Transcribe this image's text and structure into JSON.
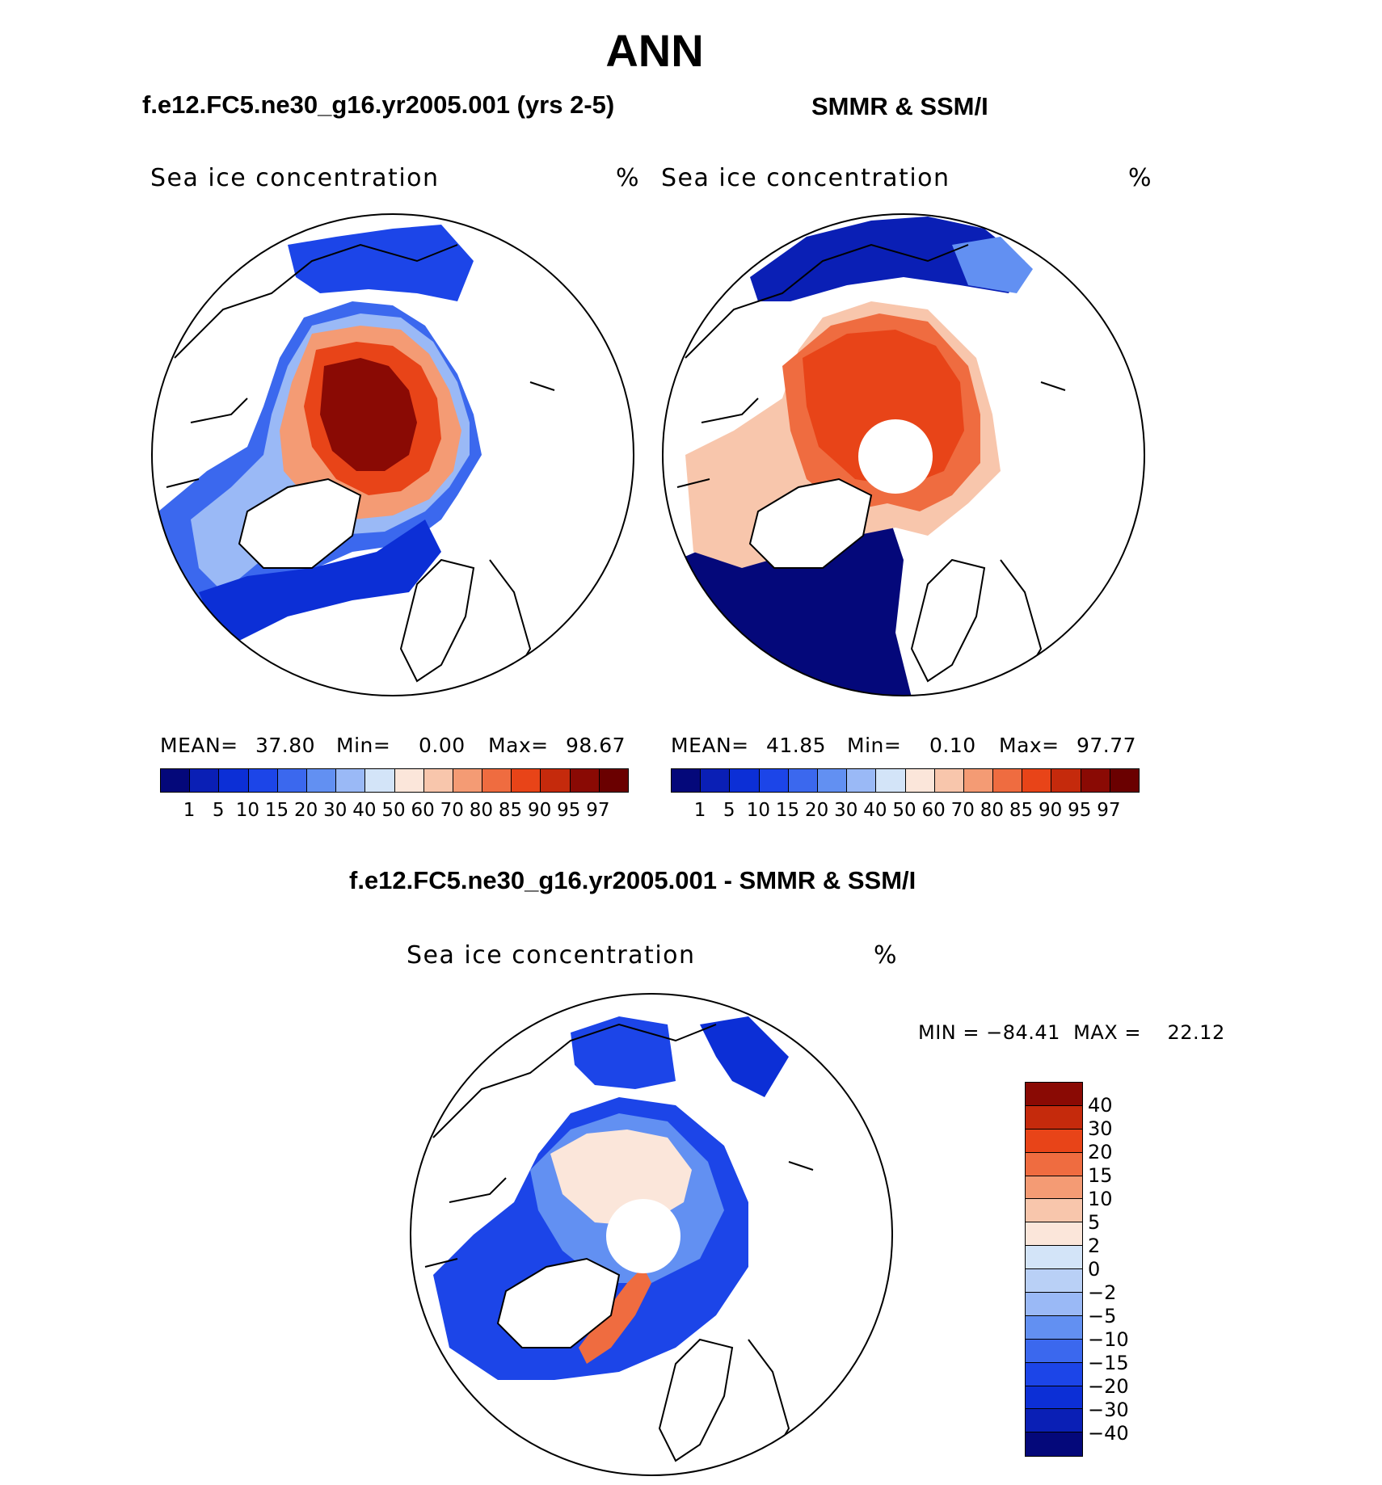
{
  "figure": {
    "season": "ANN"
  },
  "panels": {
    "model": {
      "title": "f.e12.FC5.ne30_g16.yr2005.001 (yrs 2-5)",
      "variable": "Sea ice concentration",
      "units": "%",
      "mean_label": "MEAN=",
      "mean": "37.80",
      "min_label": "Min=",
      "min": "0.00",
      "max_label": "Max=",
      "max": "98.67"
    },
    "obs": {
      "title": "SMMR & SSM/I",
      "variable": "Sea ice concentration",
      "units": "%",
      "mean_label": "MEAN=",
      "mean": "41.85",
      "min_label": "Min=",
      "min": "0.10",
      "max_label": "Max=",
      "max": "97.77"
    },
    "diff": {
      "title": "f.e12.FC5.ne30_g16.yr2005.001 - SMMR & SSM/I",
      "variable": "Sea ice concentration",
      "units": "%",
      "minmax_text": "MIN = −84.41  MAX =    22.12"
    }
  },
  "legends": {
    "concentration": {
      "levels": [
        "1",
        "5",
        "10",
        "15",
        "20",
        "30",
        "40",
        "50",
        "60",
        "70",
        "80",
        "85",
        "90",
        "95",
        "97"
      ],
      "colors": [
        "#04087a",
        "#0a1fb5",
        "#0c2fd6",
        "#1c45e8",
        "#3b68ee",
        "#6290f2",
        "#9ab9f6",
        "#d3e4f8",
        "#fbe6da",
        "#f8c6ac",
        "#f49b74",
        "#ef6c40",
        "#e84418",
        "#c52a0c",
        "#8a0a04",
        "#6a0000"
      ]
    },
    "difference": {
      "levels": [
        "40",
        "30",
        "20",
        "15",
        "10",
        "5",
        "2",
        "0",
        "−2",
        "−5",
        "−10",
        "−15",
        "−20",
        "−30",
        "−40"
      ],
      "colors": [
        "#8a0a04",
        "#c52a0c",
        "#e84418",
        "#ef6c40",
        "#f49b74",
        "#f8c6ac",
        "#fbe6da",
        "#d3e4f8",
        "#b9d0f6",
        "#9ab9f6",
        "#6290f2",
        "#3b68ee",
        "#1c45e8",
        "#0c2fd6",
        "#0a1fb5",
        "#04087a"
      ]
    }
  },
  "chart_data": {
    "type": "polar stereographic sea ice concentration maps",
    "region": "Arctic",
    "season": "ANN",
    "maps": [
      {
        "name": "f.e12.FC5.ne30_g16.yr2005.001 (yrs 2-5)",
        "field": "Sea ice concentration",
        "units": "%",
        "mean": 37.8,
        "min": 0.0,
        "max": 98.67
      },
      {
        "name": "SMMR & SSM/I",
        "field": "Sea ice concentration",
        "units": "%",
        "mean": 41.85,
        "min": 0.1,
        "max": 97.77
      },
      {
        "name": "f.e12.FC5.ne30_g16.yr2005.001 - SMMR & SSM/I",
        "field": "Sea ice concentration",
        "units": "%",
        "min": -84.41,
        "max": 22.12
      }
    ]
  }
}
